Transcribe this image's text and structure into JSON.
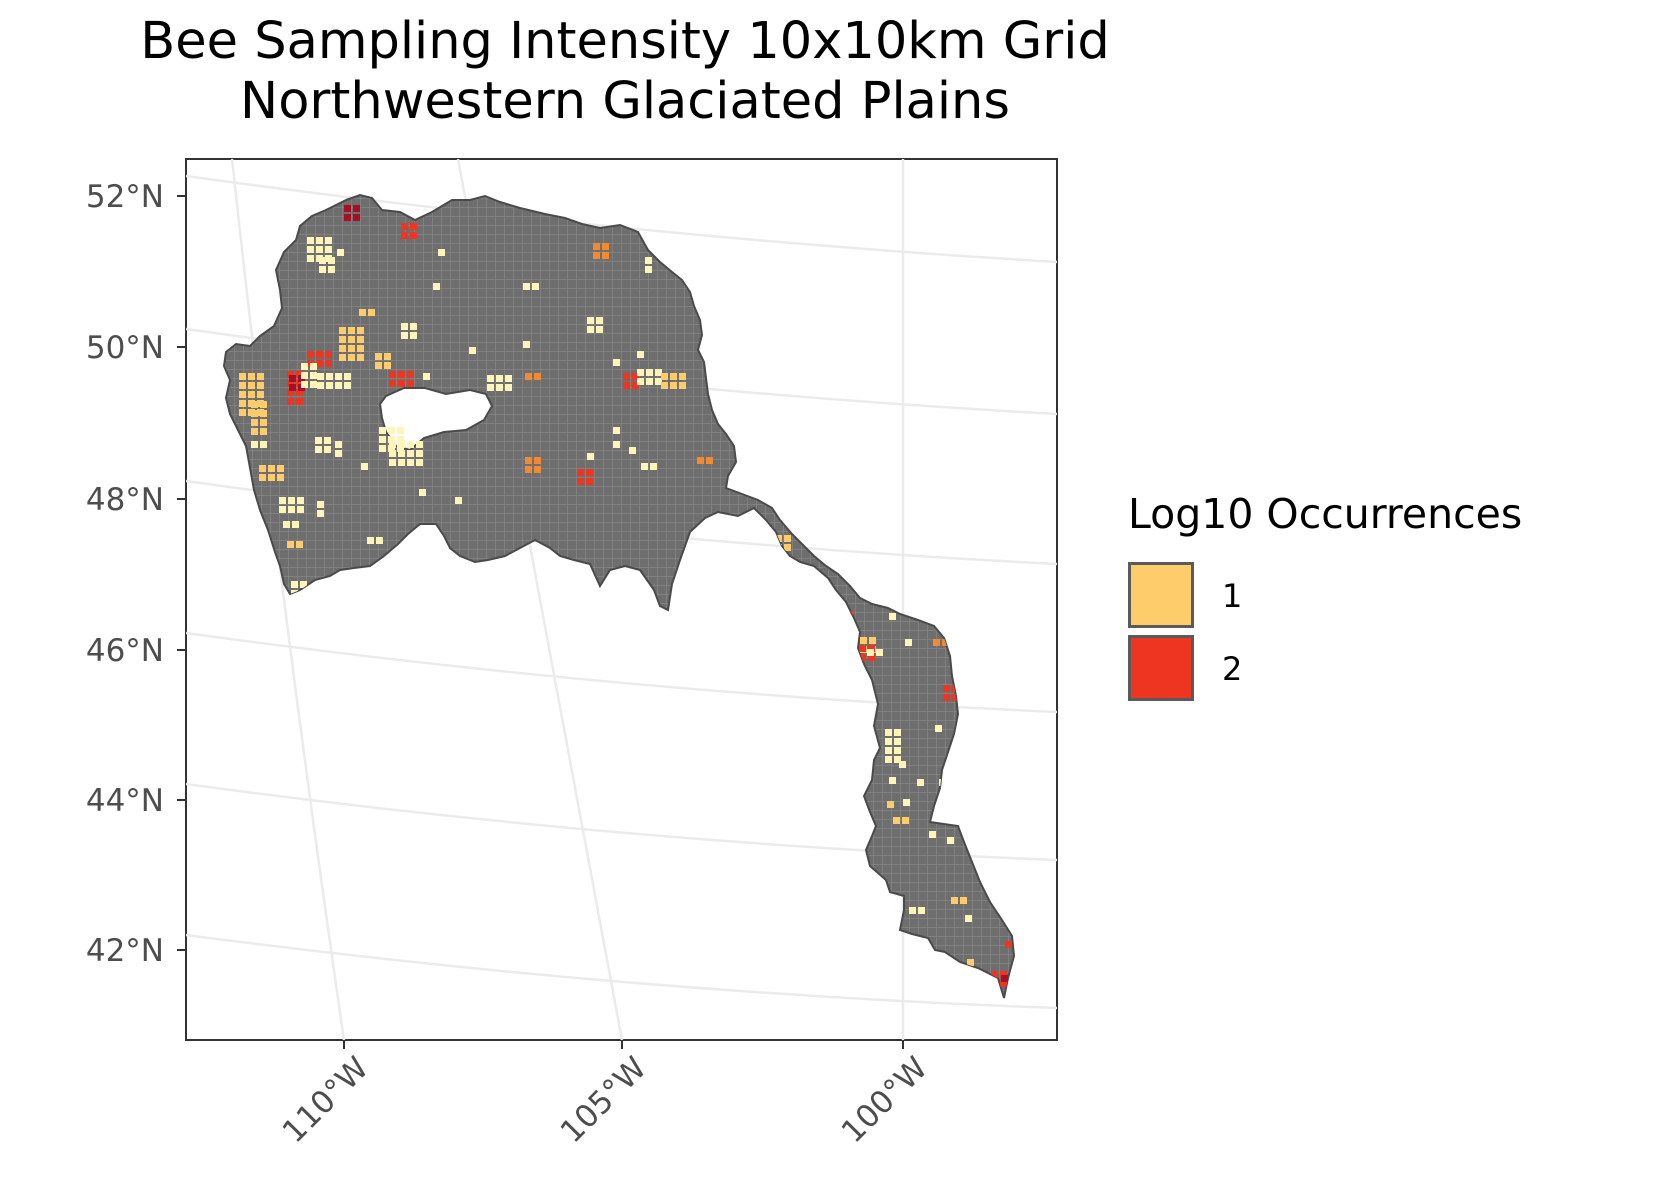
{
  "title_line1": "Bee Sampling Intensity 10x10km Grid",
  "title_line2": "Northwestern Glaciated Plains",
  "y_axis_ticks": [
    "52°N",
    "50°N",
    "48°N",
    "46°N",
    "44°N",
    "42°N"
  ],
  "x_axis_ticks": [
    "110°W",
    "105°W",
    "100°W"
  ],
  "legend": {
    "title": "Log10 Occurrences",
    "items": [
      {
        "label": "1",
        "color": "#FECC6A"
      },
      {
        "label": "2",
        "color": "#EE3522"
      }
    ]
  },
  "colors": {
    "region_fill": "#6e6e6e",
    "grid_line": "#8a8a8a",
    "low": "#FFF5B8",
    "mid": "#FECC6A",
    "high_mid": "#F28A34",
    "high": "#EE3522",
    "max": "#A80F24"
  }
}
